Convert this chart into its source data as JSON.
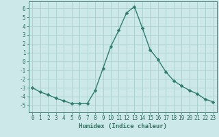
{
  "x": [
    0,
    1,
    2,
    3,
    4,
    5,
    6,
    7,
    8,
    9,
    10,
    11,
    12,
    13,
    14,
    15,
    16,
    17,
    18,
    19,
    20,
    21,
    22,
    23
  ],
  "y": [
    -3.0,
    -3.5,
    -3.8,
    -4.2,
    -4.5,
    -4.8,
    -4.8,
    -4.8,
    -3.3,
    -0.8,
    1.7,
    3.5,
    5.5,
    6.2,
    3.8,
    1.3,
    0.2,
    -1.2,
    -2.2,
    -2.8,
    -3.3,
    -3.7,
    -4.3,
    -4.6
  ],
  "line_color": "#2e7d6e",
  "marker": "D",
  "markersize": 2.5,
  "linewidth": 1.0,
  "bg_color": "#cce8e8",
  "grid_color": "#aacece",
  "xlabel": "Humidex (Indice chaleur)",
  "xlim": [
    -0.5,
    23.5
  ],
  "ylim": [
    -5.8,
    6.8
  ],
  "yticks": [
    -5,
    -4,
    -3,
    -2,
    -1,
    0,
    1,
    2,
    3,
    4,
    5,
    6
  ],
  "xticks": [
    0,
    1,
    2,
    3,
    4,
    5,
    6,
    7,
    8,
    9,
    10,
    11,
    12,
    13,
    14,
    15,
    16,
    17,
    18,
    19,
    20,
    21,
    22,
    23
  ],
  "tick_color": "#2e6e60",
  "tick_fontsize": 5.5,
  "xlabel_fontsize": 6.5
}
